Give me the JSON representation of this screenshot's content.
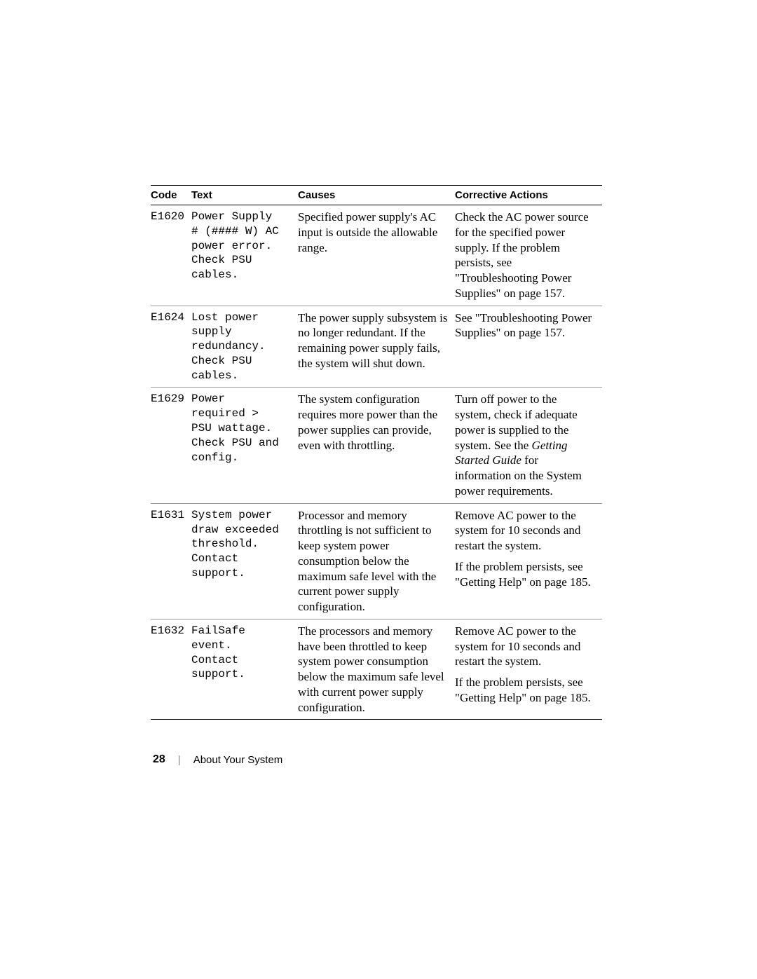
{
  "table": {
    "headers": {
      "code": "Code",
      "text": "Text",
      "causes": "Causes",
      "actions": "Corrective Actions"
    },
    "rows": [
      {
        "code": "E1620",
        "text": "Power Supply\n# (#### W) AC\npower error.\nCheck PSU\ncables.",
        "causes": "Specified power supply's AC input is outside the allowable range.",
        "actions_html": "Check the AC power source for the specified power supply. If the problem persists, see \"Troubleshooting Power Supplies\" on page 157."
      },
      {
        "code": "E1624",
        "text": "Lost power\nsupply\nredundancy.\nCheck PSU\ncables.",
        "causes": "The power supply subsystem is no longer redundant. If the remaining power supply fails, the system will shut down.",
        "actions_html": "See \"Troubleshooting Power Supplies\" on page 157."
      },
      {
        "code": "E1629",
        "text": "Power\nrequired >\nPSU wattage.\nCheck PSU and\nconfig.",
        "causes": "The system configuration requires more power than the power supplies can provide, even with throttling.",
        "actions_html": "Turn off power to the system, check if adequate power is supplied to the system. See the <span class=\"italic\">Getting Started Guide</span> for information on the System power requirements."
      },
      {
        "code": "E1631",
        "text": "System power\ndraw exceeded\nthreshold.\nContact\nsupport.",
        "causes": "Processor and memory throttling is not sufficient to keep system power consumption below the maximum safe level with the current power supply configuration.",
        "actions_html": "<div class=\"action-block\">Remove AC power to the system for 10 seconds and restart the system.</div><div class=\"action-block\">If the problem persists, see \"Getting Help\" on page 185.</div>"
      },
      {
        "code": "E1632",
        "text": "FailSafe\nevent.\nContact\nsupport.",
        "causes": "The processors and memory have been throttled to keep system power consumption below the maximum safe level with current power supply configuration.",
        "actions_html": "<div class=\"action-block\">Remove AC power to the system for 10 seconds and restart the system.</div><div class=\"action-block\">If the problem persists, see \"Getting Help\" on page 185.</div>"
      }
    ]
  },
  "footer": {
    "page_number": "28",
    "section": "About Your System"
  }
}
